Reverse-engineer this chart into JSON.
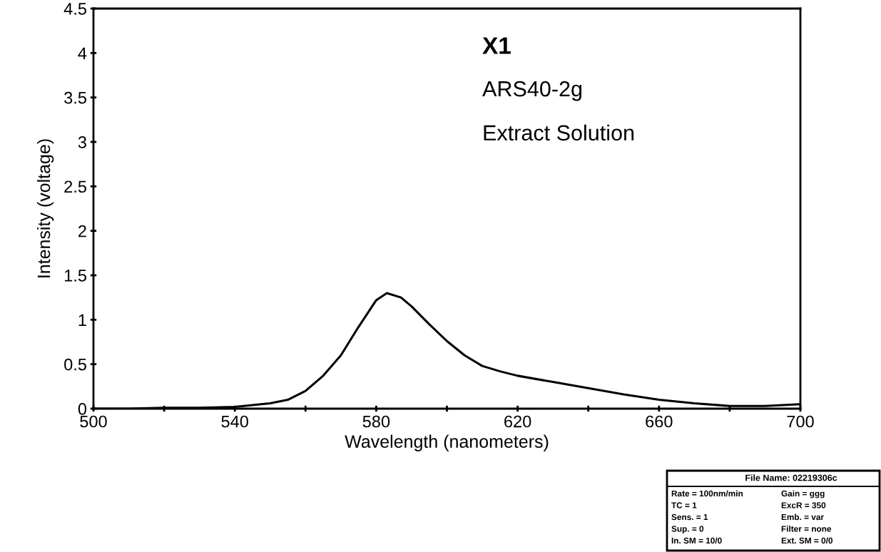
{
  "chart_data": {
    "type": "line",
    "xlabel": "Wavelength (nanometers)",
    "ylabel": "Intensity (voltage)",
    "x": [
      500,
      510,
      520,
      530,
      540,
      545,
      550,
      555,
      560,
      565,
      570,
      575,
      580,
      583,
      587,
      590,
      595,
      600,
      605,
      610,
      615,
      620,
      630,
      640,
      650,
      660,
      670,
      680,
      690,
      700
    ],
    "series": [
      {
        "color": "#000000",
        "values": [
          0,
          0,
          0.01,
          0.01,
          0.02,
          0.04,
          0.06,
          0.1,
          0.2,
          0.37,
          0.6,
          0.92,
          1.22,
          1.3,
          1.25,
          1.15,
          0.95,
          0.76,
          0.6,
          0.48,
          0.42,
          0.37,
          0.3,
          0.23,
          0.16,
          0.1,
          0.06,
          0.03,
          0.03,
          0.05
        ]
      }
    ],
    "xlim": [
      500,
      700
    ],
    "ylim": [
      0,
      4.5
    ],
    "xticks": [
      500,
      {
        "value": 520,
        "label": null
      },
      540,
      {
        "value": 560,
        "label": null
      },
      580,
      {
        "value": 600,
        "label": null
      },
      620,
      {
        "value": 640,
        "label": null
      },
      660,
      {
        "value": 680,
        "label": null
      },
      700
    ],
    "yticks": [
      0,
      0.5,
      1,
      1.5,
      2,
      2.5,
      3,
      3.5,
      4,
      4.5
    ],
    "grid": false,
    "marker": "none",
    "line_style": "solid",
    "annotations": [
      "X1",
      "ARS40-2g",
      "Extract Solution",
      "File Name: 02219306c",
      "Rate = 100nm/min",
      "Gain = ggg",
      "TC = 1",
      "ExcR = 350",
      "Sens. = 1",
      "Emb. = var",
      "Sup. = 0",
      "Filter = none",
      "In. SM = 10/0",
      "Ext. SM = 0/0"
    ]
  }
}
